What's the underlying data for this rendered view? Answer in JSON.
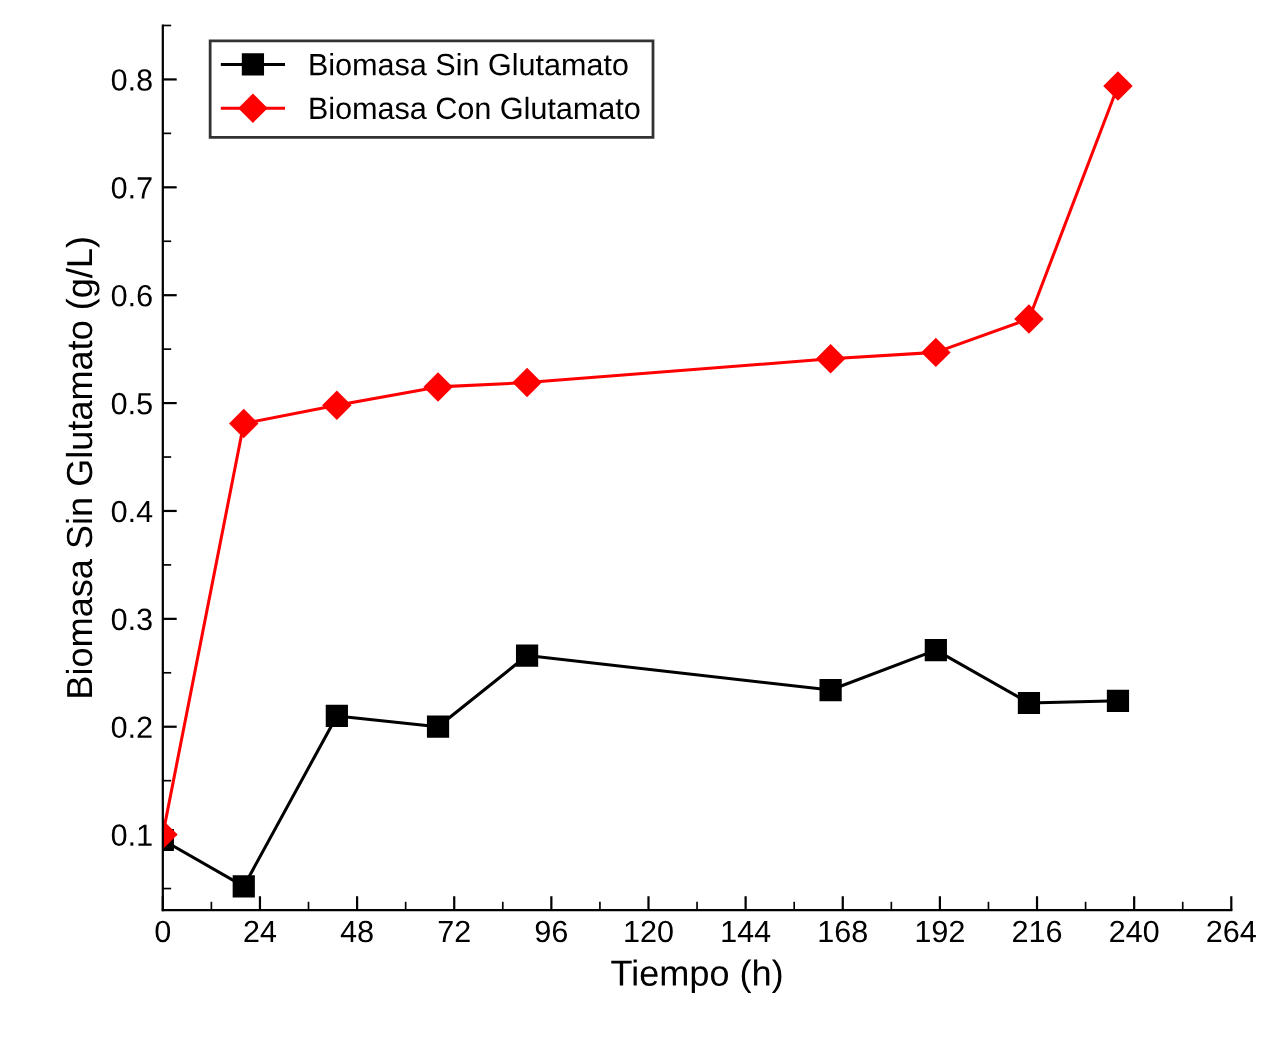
{
  "chart_data": {
    "type": "line",
    "xlabel": "Tiempo (h)",
    "ylabel": "Biomasa Sin Glutamato (g/L)",
    "x": [
      0,
      20,
      43,
      68,
      90,
      165,
      191,
      214,
      236
    ],
    "series": [
      {
        "name": "Biomasa Sin Glutamato",
        "color": "#000000",
        "marker": "square",
        "values": [
          0.095,
          0.052,
          0.21,
          0.2,
          0.266,
          0.234,
          0.271,
          0.222,
          0.224
        ]
      },
      {
        "name": "Biomasa Con Glutamato",
        "color": "#ff0000",
        "marker": "diamond",
        "values": [
          0.1,
          0.481,
          0.498,
          0.515,
          0.519,
          0.541,
          0.547,
          0.578,
          0.794
        ]
      }
    ],
    "xlim": [
      0,
      264
    ],
    "xticks": [
      0,
      24,
      48,
      72,
      96,
      120,
      144,
      168,
      192,
      216,
      240,
      264
    ],
    "ylim": [
      0.03,
      0.85
    ],
    "yticks": [
      0.1,
      0.2,
      0.3,
      0.4,
      0.5,
      0.6,
      0.7,
      0.8
    ],
    "grid": false,
    "legend": "top left",
    "line_style": "solid"
  }
}
